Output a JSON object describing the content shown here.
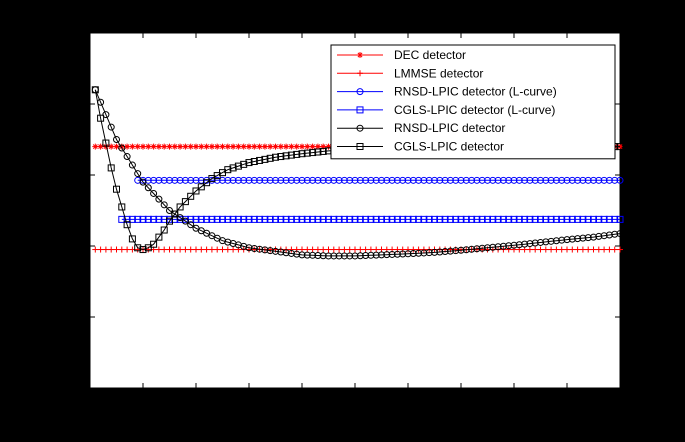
{
  "chart_data": {
    "type": "line",
    "title": "",
    "xlabel": "",
    "ylabel": "",
    "xlim": [
      0,
      100
    ],
    "ylim": [
      0,
      1
    ],
    "grid": false,
    "legend_position": "top-right",
    "series": [
      {
        "name": "DEC detector",
        "color": "#ff0000",
        "marker": "asterisk",
        "x": [
          1,
          100
        ],
        "y": [
          0.68,
          0.68
        ]
      },
      {
        "name": "LMMSE detector",
        "color": "#ff0000",
        "marker": "plus",
        "x": [
          1,
          100
        ],
        "y": [
          0.39,
          0.39
        ]
      },
      {
        "name": "RNSD-LPIC detector (L-curve)",
        "color": "#0000ff",
        "marker": "circle",
        "x": [
          9,
          100
        ],
        "y": [
          0.585,
          0.585
        ]
      },
      {
        "name": "CGLS-LPIC detector (L-curve)",
        "color": "#0000ff",
        "marker": "square",
        "x": [
          6,
          100
        ],
        "y": [
          0.475,
          0.475
        ]
      },
      {
        "name": "RNSD-LPIC detector",
        "color": "#000000",
        "marker": "circle",
        "x": [
          1,
          5,
          10,
          15,
          20,
          25,
          30,
          35,
          40,
          45,
          50,
          55,
          60,
          65,
          70,
          75,
          80,
          85,
          90,
          95,
          100
        ],
        "y": [
          0.84,
          0.7,
          0.58,
          0.5,
          0.45,
          0.415,
          0.395,
          0.385,
          0.375,
          0.372,
          0.372,
          0.375,
          0.378,
          0.382,
          0.388,
          0.395,
          0.402,
          0.41,
          0.418,
          0.425,
          0.435
        ]
      },
      {
        "name": "CGLS-LPIC detector",
        "color": "#000000",
        "marker": "square",
        "x": [
          1,
          2,
          3,
          4,
          5,
          6,
          7,
          8,
          9,
          10,
          11,
          12,
          13,
          14,
          15,
          17,
          20,
          23,
          26,
          30,
          35,
          40,
          45,
          50,
          60,
          70,
          80,
          90,
          100
        ],
        "y": [
          0.84,
          0.76,
          0.69,
          0.62,
          0.56,
          0.51,
          0.46,
          0.42,
          0.395,
          0.39,
          0.395,
          0.405,
          0.425,
          0.445,
          0.47,
          0.51,
          0.555,
          0.59,
          0.615,
          0.635,
          0.65,
          0.66,
          0.668,
          0.672,
          0.676,
          0.678,
          0.679,
          0.68,
          0.68
        ]
      }
    ]
  }
}
